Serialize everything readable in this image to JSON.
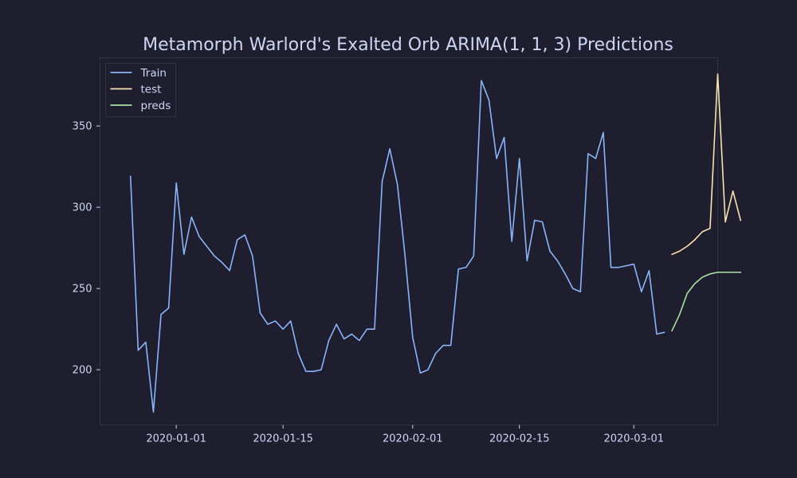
{
  "chart_data": {
    "type": "line",
    "title": "Metamorph Warlord's Exalted Orb ARIMA(1, 1, 3) Predictions",
    "xlabel": "",
    "ylabel": "",
    "x_axis": "date",
    "xlim": [
      "2019-12-22",
      "2020-03-12"
    ],
    "ylim": [
      166,
      392
    ],
    "grid": false,
    "legend_position": "top-left",
    "x_ticks": [
      "2020-01-01",
      "2020-01-15",
      "2020-02-01",
      "2020-02-15",
      "2020-03-01"
    ],
    "y_ticks": [
      200,
      250,
      300,
      350
    ],
    "colors": {
      "background": "#1e1e2e",
      "axes_frame": "#313244",
      "text": "#cdd6f4"
    },
    "series": [
      {
        "name": "Train",
        "color": "#89b4fa",
        "points": [
          [
            "2019-12-26",
            319
          ],
          [
            "2019-12-27",
            212
          ],
          [
            "2019-12-28",
            217
          ],
          [
            "2019-12-29",
            174
          ],
          [
            "2019-12-30",
            234
          ],
          [
            "2019-12-31",
            238
          ],
          [
            "2020-01-01",
            315
          ],
          [
            "2020-01-02",
            271
          ],
          [
            "2020-01-03",
            294
          ],
          [
            "2020-01-04",
            282
          ],
          [
            "2020-01-05",
            276
          ],
          [
            "2020-01-06",
            270
          ],
          [
            "2020-01-07",
            266
          ],
          [
            "2020-01-08",
            261
          ],
          [
            "2020-01-09",
            280
          ],
          [
            "2020-01-10",
            283
          ],
          [
            "2020-01-11",
            270
          ],
          [
            "2020-01-12",
            235
          ],
          [
            "2020-01-13",
            228
          ],
          [
            "2020-01-14",
            230
          ],
          [
            "2020-01-15",
            225
          ],
          [
            "2020-01-16",
            230
          ],
          [
            "2020-01-17",
            210
          ],
          [
            "2020-01-18",
            199
          ],
          [
            "2020-01-19",
            199
          ],
          [
            "2020-01-20",
            200
          ],
          [
            "2020-01-21",
            218
          ],
          [
            "2020-01-22",
            228
          ],
          [
            "2020-01-23",
            219
          ],
          [
            "2020-01-24",
            222
          ],
          [
            "2020-01-25",
            218
          ],
          [
            "2020-01-26",
            225
          ],
          [
            "2020-01-27",
            225
          ],
          [
            "2020-01-28",
            316
          ],
          [
            "2020-01-29",
            336
          ],
          [
            "2020-01-30",
            314
          ],
          [
            "2020-01-31",
            270
          ],
          [
            "2020-02-01",
            220
          ],
          [
            "2020-02-02",
            198
          ],
          [
            "2020-02-03",
            200
          ],
          [
            "2020-02-04",
            210
          ],
          [
            "2020-02-05",
            215
          ],
          [
            "2020-02-06",
            215
          ],
          [
            "2020-02-07",
            262
          ],
          [
            "2020-02-08",
            263
          ],
          [
            "2020-02-09",
            270
          ],
          [
            "2020-02-10",
            378
          ],
          [
            "2020-02-11",
            366
          ],
          [
            "2020-02-12",
            330
          ],
          [
            "2020-02-13",
            343
          ],
          [
            "2020-02-14",
            279
          ],
          [
            "2020-02-15",
            330
          ],
          [
            "2020-02-16",
            267
          ],
          [
            "2020-02-17",
            292
          ],
          [
            "2020-02-18",
            291
          ],
          [
            "2020-02-19",
            273
          ],
          [
            "2020-02-20",
            267
          ],
          [
            "2020-02-21",
            259
          ],
          [
            "2020-02-22",
            250
          ],
          [
            "2020-02-23",
            248
          ],
          [
            "2020-02-24",
            333
          ],
          [
            "2020-02-25",
            330
          ],
          [
            "2020-02-26",
            346
          ],
          [
            "2020-02-27",
            263
          ],
          [
            "2020-02-28",
            263
          ],
          [
            "2020-02-29",
            264
          ],
          [
            "2020-03-01",
            265
          ],
          [
            "2020-03-02",
            248
          ],
          [
            "2020-03-03",
            261
          ],
          [
            "2020-03-04",
            222
          ],
          [
            "2020-03-05",
            223
          ]
        ]
      },
      {
        "name": "test",
        "color": "#f9e2af",
        "points": [
          [
            "2020-03-06",
            271
          ],
          [
            "2020-03-07",
            273
          ],
          [
            "2020-03-08",
            276
          ],
          [
            "2020-03-09",
            280
          ],
          [
            "2020-03-10",
            285
          ],
          [
            "2020-03-11",
            287
          ],
          [
            "2020-03-12",
            382
          ],
          [
            "2020-03-13",
            291
          ],
          [
            "2020-03-14",
            310
          ],
          [
            "2020-03-15",
            292
          ]
        ]
      },
      {
        "name": "preds",
        "color": "#a6e3a1",
        "points": [
          [
            "2020-03-06",
            224
          ],
          [
            "2020-03-07",
            234
          ],
          [
            "2020-03-08",
            247
          ],
          [
            "2020-03-09",
            253
          ],
          [
            "2020-03-10",
            257
          ],
          [
            "2020-03-11",
            259
          ],
          [
            "2020-03-12",
            260
          ],
          [
            "2020-03-13",
            260
          ],
          [
            "2020-03-14",
            260
          ],
          [
            "2020-03-15",
            260
          ]
        ]
      }
    ]
  }
}
